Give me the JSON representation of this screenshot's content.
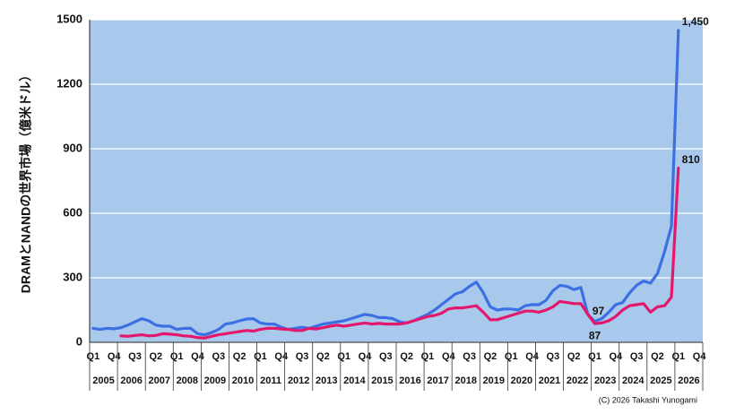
{
  "chart_data": {
    "type": "line",
    "y_label": "DRAMとNANDの世界市場（億米ドル）",
    "credit": "(C) 2026 Takashi Yunogami",
    "categories": [
      "Q1",
      null,
      null,
      "Q4",
      null,
      null,
      "Q3",
      null,
      null,
      "Q2",
      null,
      null,
      "Q1",
      null,
      null,
      "Q4",
      null,
      null,
      "Q3",
      null,
      null,
      "Q2",
      null,
      null,
      "Q1",
      null,
      null,
      "Q4",
      null,
      null,
      "Q3",
      null,
      null,
      "Q2",
      null,
      null,
      "Q1",
      null,
      null,
      "Q4",
      null,
      null,
      "Q3",
      null,
      null,
      "Q2",
      null,
      null,
      "Q1",
      null,
      null,
      "Q4",
      null,
      null,
      "Q3",
      null,
      null,
      "Q2",
      null,
      null,
      "Q1",
      null,
      null,
      "Q4",
      null,
      null,
      "Q3",
      null,
      null,
      "Q2",
      null,
      null,
      "Q1",
      null,
      null,
      "Q4",
      null,
      null,
      "Q3",
      null,
      null,
      "Q2",
      null,
      null,
      "Q1",
      null,
      null,
      "Q4"
    ],
    "years": [
      "2005",
      "2006",
      "2007",
      "2008",
      "2009",
      "2010",
      "2011",
      "2012",
      "2013",
      "2014",
      "2015",
      "2016",
      "2017",
      "2018",
      "2019",
      "2020",
      "2021",
      "2022",
      "2023",
      "2024",
      "2025",
      "2026"
    ],
    "ylim": [
      0,
      1500
    ],
    "yticks": [
      0,
      300,
      600,
      900,
      1200,
      1500
    ],
    "grid": true,
    "background": "#a9c9ec",
    "series": [
      {
        "color": "#3b6fe3",
        "values": [
          65,
          60,
          65,
          63,
          68,
          80,
          95,
          110,
          100,
          80,
          75,
          75,
          60,
          65,
          65,
          40,
          35,
          45,
          60,
          85,
          90,
          100,
          108,
          110,
          90,
          85,
          85,
          70,
          60,
          65,
          70,
          65,
          75,
          85,
          90,
          95,
          100,
          110,
          120,
          130,
          125,
          115,
          115,
          110,
          95,
          90,
          100,
          115,
          130,
          150,
          175,
          200,
          225,
          235,
          260,
          280,
          230,
          165,
          150,
          155,
          155,
          150,
          170,
          175,
          175,
          195,
          240,
          265,
          260,
          245,
          255,
          130,
          97,
          110,
          140,
          175,
          185,
          230,
          265,
          285,
          275,
          320,
          420,
          540,
          1450,
          null,
          null,
          null
        ],
        "value_labels": [
          null,
          null,
          null,
          null,
          null,
          null,
          null,
          null,
          null,
          null,
          null,
          null,
          null,
          null,
          null,
          null,
          null,
          null,
          null,
          null,
          null,
          null,
          null,
          null,
          null,
          null,
          null,
          null,
          null,
          null,
          null,
          null,
          null,
          null,
          null,
          null,
          null,
          null,
          null,
          null,
          null,
          null,
          null,
          null,
          null,
          null,
          null,
          null,
          null,
          null,
          null,
          null,
          null,
          null,
          null,
          null,
          null,
          null,
          null,
          null,
          null,
          null,
          null,
          null,
          null,
          null,
          null,
          null,
          null,
          null,
          null,
          null,
          "97",
          null,
          null,
          null,
          null,
          null,
          null,
          null,
          null,
          null,
          null,
          null,
          "1,450",
          null,
          null,
          null
        ]
      },
      {
        "color": "#e3186d",
        "values": [
          null,
          null,
          null,
          null,
          30,
          28,
          32,
          35,
          30,
          32,
          40,
          38,
          35,
          30,
          28,
          22,
          20,
          28,
          35,
          40,
          45,
          50,
          55,
          52,
          60,
          65,
          65,
          62,
          60,
          55,
          55,
          65,
          62,
          68,
          75,
          80,
          75,
          80,
          85,
          90,
          85,
          88,
          85,
          85,
          85,
          90,
          100,
          110,
          120,
          125,
          135,
          155,
          160,
          160,
          165,
          170,
          140,
          105,
          105,
          115,
          125,
          135,
          145,
          145,
          140,
          150,
          165,
          190,
          185,
          180,
          180,
          130,
          87,
          90,
          100,
          120,
          150,
          170,
          175,
          180,
          140,
          165,
          170,
          210,
          810,
          null,
          null,
          null
        ],
        "value_labels": [
          null,
          null,
          null,
          null,
          null,
          null,
          null,
          null,
          null,
          null,
          null,
          null,
          null,
          null,
          null,
          null,
          null,
          null,
          null,
          null,
          null,
          null,
          null,
          null,
          null,
          null,
          null,
          null,
          null,
          null,
          null,
          null,
          null,
          null,
          null,
          null,
          null,
          null,
          null,
          null,
          null,
          null,
          null,
          null,
          null,
          null,
          null,
          null,
          null,
          null,
          null,
          null,
          null,
          null,
          null,
          null,
          null,
          null,
          null,
          null,
          null,
          null,
          null,
          null,
          null,
          null,
          null,
          null,
          null,
          null,
          null,
          null,
          "87",
          null,
          null,
          null,
          null,
          null,
          null,
          null,
          null,
          null,
          null,
          null,
          "810",
          null,
          null,
          null
        ]
      }
    ]
  }
}
